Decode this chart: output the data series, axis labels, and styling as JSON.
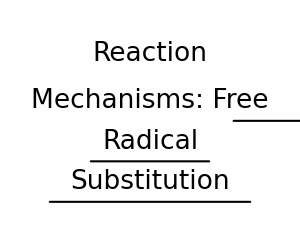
{
  "background_color": "#ffffff",
  "text_color": "#000000",
  "line1": "Reaction",
  "line2_normal": "Mechanisms: ",
  "line2_underlined": "Free",
  "line3": "Radical",
  "line4": "Substitution",
  "fontsize": 19,
  "fontfamily": "DejaVu Sans",
  "fig_width": 3.0,
  "fig_height": 2.25,
  "dpi": 100
}
